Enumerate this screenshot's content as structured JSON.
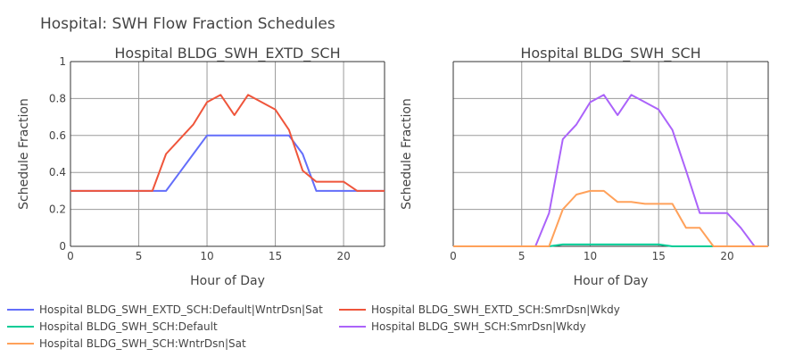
{
  "figure": {
    "title": "Hospital: SWH Flow Fraction Schedules"
  },
  "chart_data": [
    {
      "type": "line",
      "title": "Hospital BLDG_SWH_EXTD_SCH",
      "xlabel": "Hour of Day",
      "ylabel": "Schedule Fraction",
      "xlim": [
        0,
        23
      ],
      "ylim": [
        0,
        1
      ],
      "xticks": [
        0,
        5,
        10,
        15,
        20
      ],
      "yticks": [
        0,
        0.2,
        0.4,
        0.6,
        0.8,
        1
      ],
      "ytick_labels": [
        "0",
        "0.2",
        "0.4",
        "0.6",
        "0.8",
        "1"
      ],
      "grid": true,
      "series": [
        {
          "name": "Hospital BLDG_SWH_EXTD_SCH:Default|WntrDsn|Sat",
          "color": "#636efa",
          "x": [
            0,
            1,
            2,
            3,
            4,
            5,
            6,
            7,
            8,
            9,
            10,
            11,
            12,
            13,
            14,
            15,
            16,
            17,
            18,
            19,
            20,
            21,
            22,
            23
          ],
          "y": [
            0.3,
            0.3,
            0.3,
            0.3,
            0.3,
            0.3,
            0.3,
            0.3,
            0.4,
            0.5,
            0.6,
            0.6,
            0.6,
            0.6,
            0.6,
            0.6,
            0.6,
            0.5,
            0.3,
            0.3,
            0.3,
            0.3,
            0.3,
            0.3
          ]
        },
        {
          "name": "Hospital BLDG_SWH_EXTD_SCH:SmrDsn|Wkdy",
          "color": "#ef553b",
          "x": [
            0,
            1,
            2,
            3,
            4,
            5,
            6,
            7,
            8,
            9,
            10,
            11,
            12,
            13,
            14,
            15,
            16,
            17,
            18,
            19,
            20,
            21,
            22,
            23
          ],
          "y": [
            0.3,
            0.3,
            0.3,
            0.3,
            0.3,
            0.3,
            0.3,
            0.5,
            0.58,
            0.66,
            0.78,
            0.82,
            0.71,
            0.82,
            0.78,
            0.74,
            0.63,
            0.41,
            0.35,
            0.35,
            0.35,
            0.3,
            0.3,
            0.3
          ]
        }
      ]
    },
    {
      "type": "line",
      "title": "Hospital BLDG_SWH_SCH",
      "xlabel": "Hour of Day",
      "ylabel": "Schedule Fraction",
      "xlim": [
        0,
        23
      ],
      "ylim": [
        0,
        1
      ],
      "xticks": [
        0,
        5,
        10,
        15,
        20
      ],
      "yticks": [
        0,
        0.2,
        0.4,
        0.6,
        0.8,
        1
      ],
      "ytick_labels": [
        "",
        "",
        "",
        "",
        "",
        ""
      ],
      "grid": true,
      "series": [
        {
          "name": "Hospital BLDG_SWH_SCH:Default",
          "color": "#00cc96",
          "x": [
            0,
            1,
            2,
            3,
            4,
            5,
            6,
            7,
            8,
            9,
            10,
            11,
            12,
            13,
            14,
            15,
            16,
            17,
            18,
            19,
            20,
            21,
            22,
            23
          ],
          "y": [
            0,
            0,
            0,
            0,
            0,
            0,
            0,
            0,
            0.01,
            0.01,
            0.01,
            0.01,
            0.01,
            0.01,
            0.01,
            0.01,
            0,
            0,
            0,
            0,
            0,
            0,
            0,
            0
          ]
        },
        {
          "name": "Hospital BLDG_SWH_SCH:SmrDsn|Wkdy",
          "color": "#ab63fa",
          "x": [
            0,
            1,
            2,
            3,
            4,
            5,
            6,
            7,
            8,
            9,
            10,
            11,
            12,
            13,
            14,
            15,
            16,
            17,
            18,
            19,
            20,
            21,
            22
          ],
          "y": [
            0,
            0,
            0,
            0,
            0,
            0,
            0,
            0.18,
            0.58,
            0.66,
            0.78,
            0.82,
            0.71,
            0.82,
            0.78,
            0.74,
            0.63,
            0.41,
            0.18,
            0.18,
            0.18,
            0.1,
            0
          ]
        },
        {
          "name": "Hospital BLDG_SWH_SCH:WntrDsn|Sat",
          "color": "#ffa15a",
          "x": [
            0,
            1,
            2,
            3,
            4,
            5,
            6,
            7,
            8,
            9,
            10,
            11,
            12,
            13,
            14,
            15,
            16,
            17,
            18,
            19,
            20,
            21,
            22,
            23
          ],
          "y": [
            0,
            0,
            0,
            0,
            0,
            0,
            0,
            0,
            0.2,
            0.28,
            0.3,
            0.3,
            0.24,
            0.24,
            0.23,
            0.23,
            0.23,
            0.1,
            0.1,
            0,
            0,
            0,
            0,
            0
          ]
        }
      ]
    }
  ],
  "legend": {
    "placement": "bottom",
    "items": [
      {
        "label": "Hospital BLDG_SWH_EXTD_SCH:Default|WntrDsn|Sat",
        "color": "#636efa"
      },
      {
        "label": "Hospital BLDG_SWH_EXTD_SCH:SmrDsn|Wkdy",
        "color": "#ef553b"
      },
      {
        "label": "Hospital BLDG_SWH_SCH:Default",
        "color": "#00cc96"
      },
      {
        "label": "Hospital BLDG_SWH_SCH:SmrDsn|Wkdy",
        "color": "#ab63fa"
      },
      {
        "label": "Hospital BLDG_SWH_SCH:WntrDsn|Sat",
        "color": "#ffa15a"
      }
    ]
  }
}
